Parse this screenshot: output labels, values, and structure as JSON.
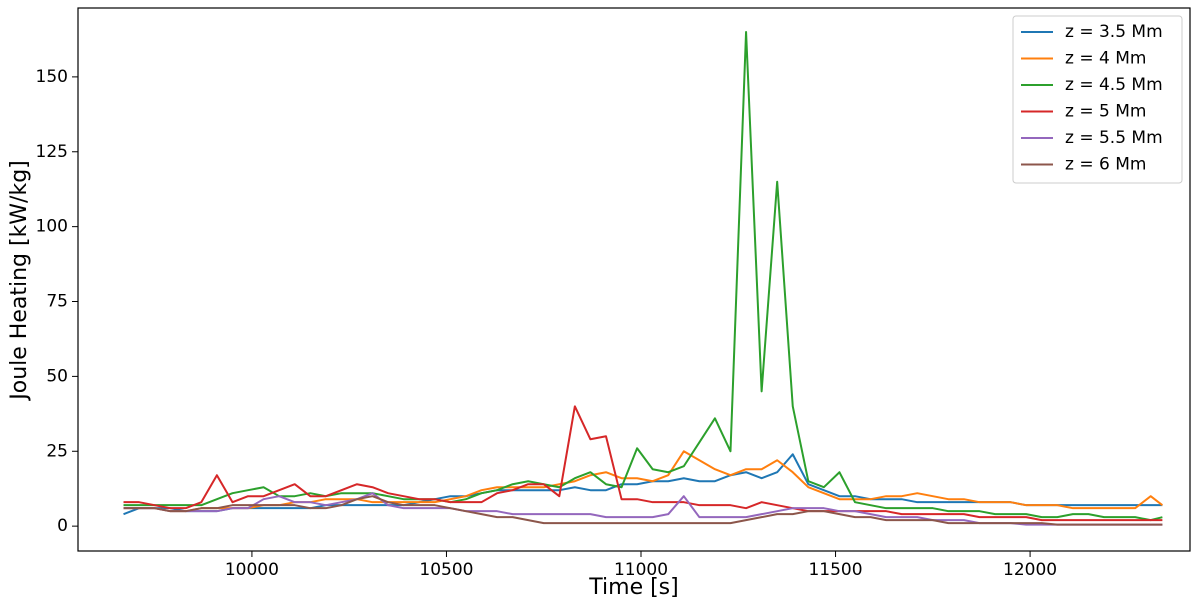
{
  "chart_data": {
    "type": "line",
    "x_label": "Time [s]",
    "y_label": "Joule Heating [kW/kg]",
    "x": [
      9670,
      9710,
      9750,
      9790,
      9830,
      9870,
      9910,
      9950,
      9990,
      10030,
      10070,
      10110,
      10150,
      10190,
      10230,
      10270,
      10310,
      10350,
      10390,
      10430,
      10470,
      10510,
      10550,
      10590,
      10630,
      10670,
      10710,
      10750,
      10790,
      10830,
      10870,
      10910,
      10950,
      10990,
      11030,
      11070,
      11110,
      11150,
      11190,
      11230,
      11270,
      11310,
      11350,
      11390,
      11430,
      11470,
      11510,
      11550,
      11590,
      11630,
      11670,
      11710,
      11750,
      11790,
      11830,
      11870,
      11910,
      11950,
      11990,
      12030,
      12070,
      12110,
      12150,
      12190,
      12230,
      12270,
      12310,
      12340
    ],
    "series": [
      {
        "name": "z = 3.5 Mm",
        "color": "#1f77b4",
        "values": [
          4,
          6,
          6,
          6,
          5,
          5,
          5,
          6,
          6,
          6,
          6,
          6,
          6,
          7,
          7,
          7,
          7,
          7,
          7,
          8,
          9,
          10,
          10,
          11,
          12,
          12,
          12,
          12,
          12,
          13,
          12,
          12,
          14,
          14,
          15,
          15,
          16,
          15,
          15,
          17,
          18,
          16,
          18,
          24,
          14,
          12,
          10,
          10,
          9,
          9,
          9,
          8,
          8,
          8,
          8,
          8,
          8,
          8,
          7,
          7,
          7,
          7,
          7,
          7,
          7,
          7,
          7,
          7
        ]
      },
      {
        "name": "z = 4 Mm",
        "color": "#ff7f0e",
        "values": [
          6,
          6,
          6,
          5,
          5,
          6,
          6,
          6,
          6,
          7,
          7,
          8,
          8,
          9,
          9,
          9,
          8,
          8,
          8,
          8,
          8,
          9,
          10,
          12,
          13,
          13,
          13,
          13,
          14,
          15,
          17,
          18,
          16,
          16,
          15,
          17,
          25,
          22,
          19,
          17,
          19,
          19,
          22,
          18,
          13,
          11,
          9,
          9,
          9,
          10,
          10,
          11,
          10,
          9,
          9,
          8,
          8,
          8,
          7,
          7,
          7,
          6,
          6,
          6,
          6,
          6,
          10,
          7
        ]
      },
      {
        "name": "z = 4.5 Mm",
        "color": "#2ca02c",
        "values": [
          7,
          7,
          7,
          7,
          7,
          7,
          9,
          11,
          12,
          13,
          10,
          10,
          11,
          10,
          11,
          11,
          11,
          10,
          9,
          9,
          9,
          8,
          9,
          11,
          12,
          14,
          15,
          14,
          13,
          16,
          18,
          14,
          13,
          26,
          19,
          18,
          20,
          28,
          36,
          25,
          165,
          45,
          115,
          40,
          15,
          13,
          18,
          8,
          7,
          6,
          6,
          6,
          6,
          5,
          5,
          5,
          4,
          4,
          4,
          3,
          3,
          4,
          4,
          3,
          3,
          3,
          2,
          3
        ]
      },
      {
        "name": "z = 5 Mm",
        "color": "#d62728",
        "values": [
          8,
          8,
          7,
          6,
          6,
          8,
          17,
          8,
          10,
          10,
          12,
          14,
          10,
          10,
          12,
          14,
          13,
          11,
          10,
          9,
          9,
          8,
          8,
          8,
          11,
          12,
          14,
          14,
          10,
          40,
          29,
          30,
          9,
          9,
          8,
          8,
          8,
          7,
          7,
          7,
          6,
          8,
          7,
          6,
          5,
          5,
          5,
          5,
          5,
          5,
          4,
          4,
          4,
          4,
          4,
          3,
          3,
          3,
          3,
          2,
          2,
          2,
          2,
          2,
          2,
          2,
          2,
          2
        ]
      },
      {
        "name": "z = 5.5 Mm",
        "color": "#9467bd",
        "values": [
          6,
          6,
          6,
          5,
          5,
          5,
          5,
          6,
          6,
          9,
          10,
          8,
          8,
          7,
          8,
          9,
          11,
          7,
          6,
          6,
          6,
          6,
          5,
          5,
          5,
          4,
          4,
          4,
          4,
          4,
          4,
          3,
          3,
          3,
          3,
          4,
          10,
          3,
          3,
          3,
          3,
          4,
          5,
          6,
          6,
          6,
          5,
          5,
          4,
          3,
          3,
          3,
          2,
          2,
          2,
          1,
          1,
          1,
          0.5,
          0.5,
          0.5,
          0.5,
          0.5,
          0.5,
          0.5,
          0.5,
          0.5,
          0.5
        ]
      },
      {
        "name": "z = 6 Mm",
        "color": "#8c564b",
        "values": [
          6,
          6,
          6,
          5,
          5,
          6,
          6,
          7,
          7,
          7,
          7,
          7,
          6,
          6,
          7,
          9,
          10,
          8,
          7,
          7,
          7,
          6,
          5,
          4,
          3,
          3,
          2,
          1,
          1,
          1,
          1,
          1,
          1,
          1,
          1,
          1,
          1,
          1,
          1,
          1,
          2,
          3,
          4,
          4,
          5,
          5,
          4,
          3,
          3,
          2,
          2,
          2,
          2,
          1,
          1,
          1,
          1,
          1,
          1,
          1,
          0.5,
          0.5,
          0.5,
          0.5,
          0.5,
          0.5,
          0.5,
          0.5
        ]
      }
    ],
    "xlim": [
      9553,
      12411
    ],
    "ylim": [
      -8.3,
      173
    ],
    "xticks": [
      10000,
      10500,
      11000,
      11500,
      12000
    ],
    "yticks": [
      0,
      25,
      50,
      75,
      100,
      125,
      150
    ],
    "legend": "upper right"
  }
}
